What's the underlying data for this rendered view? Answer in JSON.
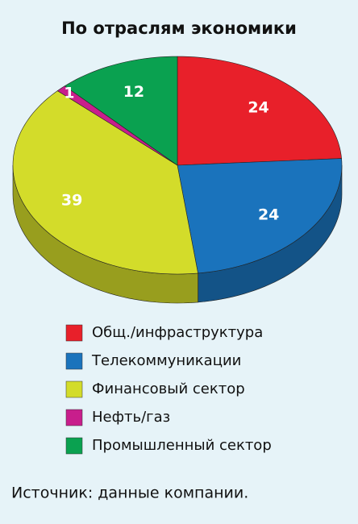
{
  "chart_data": {
    "type": "pie3d",
    "title": "По отраслям экономики",
    "categories": [
      "Общ./инфраструктура",
      "Телекоммуникации",
      "Финансовый сектор",
      "Нефть/газ",
      "Промышленный сектор"
    ],
    "values": [
      24,
      24,
      39,
      1,
      12
    ],
    "colors": [
      "#e8202a",
      "#1a73bc",
      "#d3dc2a",
      "#c81e8c",
      "#0aa150"
    ],
    "source": "Источник: данные компании."
  }
}
